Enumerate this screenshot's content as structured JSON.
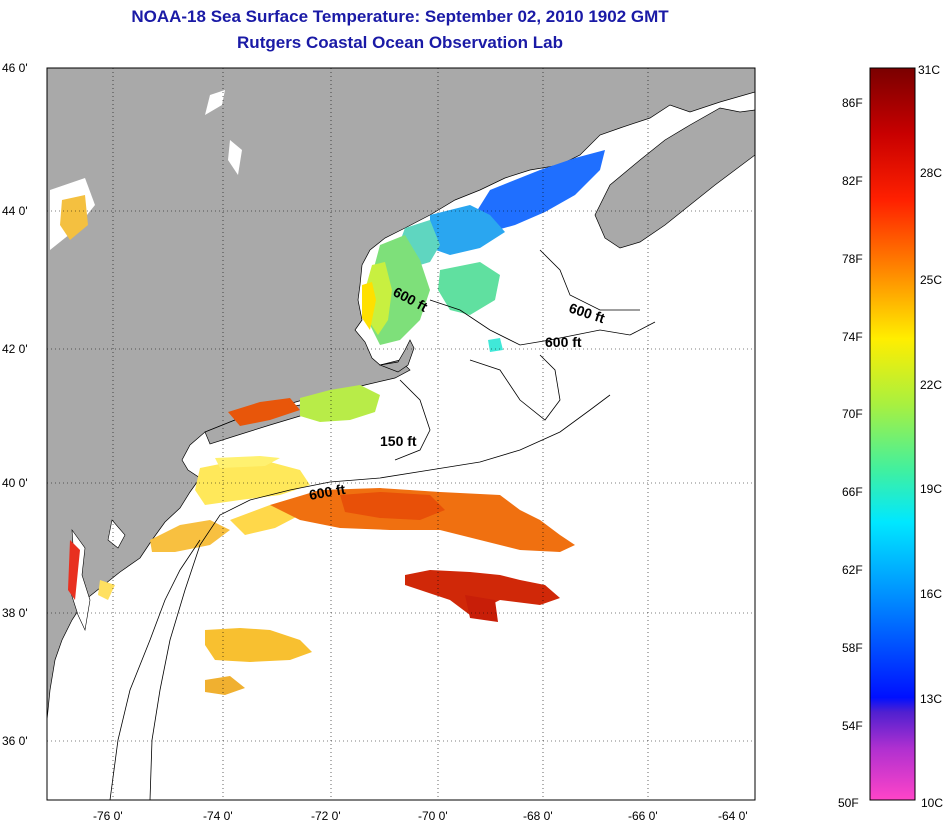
{
  "title": {
    "line1": "NOAA-18 Sea Surface Temperature:  September 02, 2010 1902 GMT",
    "line2": "Rutgers Coastal Ocean Observation Lab"
  },
  "map": {
    "lat_labels": [
      "46 0'",
      "44 0'",
      "42 0'",
      "40 0'",
      "38 0'",
      "36 0'"
    ],
    "lon_labels": [
      "-76 0'",
      "-74 0'",
      "-72 0'",
      "-70 0'",
      "-68 0'",
      "-66 0'",
      "-64 0'"
    ],
    "depth_labels": [
      "600 ft",
      "600 ft",
      "600 ft",
      "150 ft",
      "600 ft"
    ],
    "colors": {
      "land": "#a9a9a9",
      "water": "#ffffff",
      "title": "#1a1aa6"
    }
  },
  "colorbar": {
    "top_c": "31C",
    "bottom_f": "50F",
    "bottom_c": "10C",
    "f_labels": [
      "86F",
      "82F",
      "78F",
      "74F",
      "70F",
      "66F",
      "62F",
      "58F",
      "54F"
    ],
    "c_labels": [
      "28C",
      "25C",
      "22C",
      "19C",
      "16C",
      "13C"
    ]
  }
}
